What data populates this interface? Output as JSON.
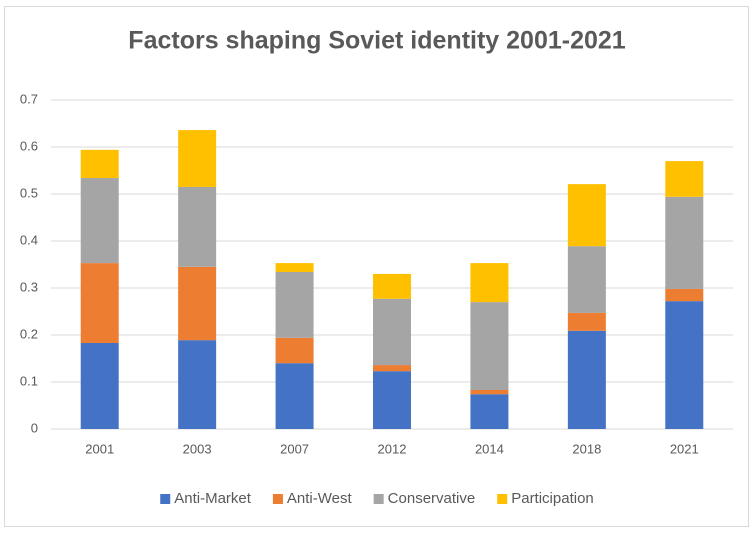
{
  "chart_data": {
    "type": "stacked-bar",
    "title": "Factors shaping Soviet identity 2001-2021",
    "categories": [
      "2001",
      "2003",
      "2007",
      "2012",
      "2014",
      "2018",
      "2021"
    ],
    "series": [
      {
        "name": "Anti-Market",
        "color": "#4472c4",
        "values": [
          0.183,
          0.189,
          0.14,
          0.123,
          0.074,
          0.209,
          0.272
        ]
      },
      {
        "name": "Anti-West",
        "color": "#ed7d31",
        "values": [
          0.17,
          0.156,
          0.054,
          0.013,
          0.009,
          0.038,
          0.026
        ]
      },
      {
        "name": "Conservative",
        "color": "#a5a5a5",
        "values": [
          0.181,
          0.17,
          0.14,
          0.141,
          0.187,
          0.142,
          0.196
        ]
      },
      {
        "name": "Participation",
        "color": "#ffc000",
        "values": [
          0.06,
          0.121,
          0.019,
          0.053,
          0.083,
          0.132,
          0.076
        ]
      }
    ],
    "ylim": [
      0,
      0.7
    ],
    "yticks": [
      0,
      0.1,
      0.2,
      0.3,
      0.4,
      0.5,
      0.6,
      0.7
    ],
    "grid": true,
    "legend": "bottom"
  }
}
